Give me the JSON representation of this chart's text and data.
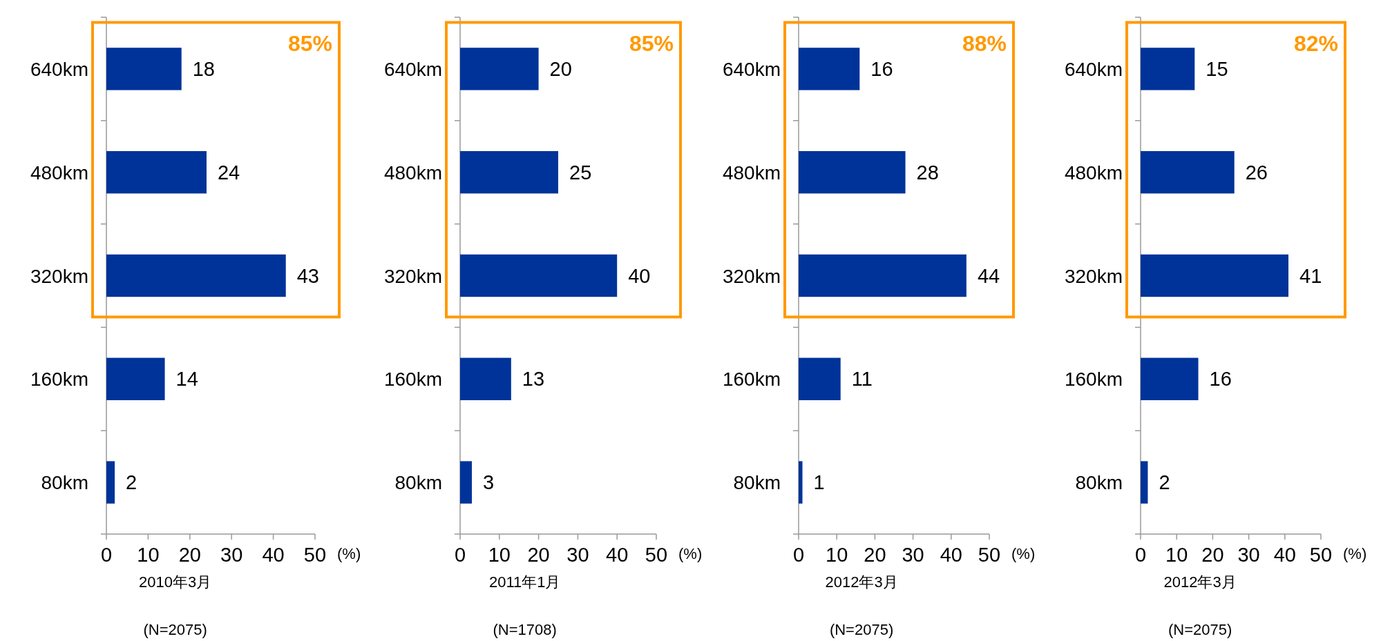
{
  "chart_data": [
    {
      "type": "bar",
      "orientation": "horizontal",
      "title": "2010年3月",
      "subtitle": "(N=2075)",
      "xlabel": "(%)",
      "categories": [
        "640km",
        "480km",
        "320km",
        "160km",
        "80km"
      ],
      "values": [
        18,
        24,
        43,
        14,
        2
      ],
      "color": "#003399",
      "xlim": [
        0,
        50
      ],
      "xticks": [
        0,
        10,
        20,
        30,
        40,
        50
      ],
      "data_labels": true,
      "annotations": [
        "85%"
      ]
    },
    {
      "type": "bar",
      "orientation": "horizontal",
      "title": "2011年1月",
      "subtitle": "(N=1708)",
      "xlabel": "(%)",
      "categories": [
        "640km",
        "480km",
        "320km",
        "160km",
        "80km"
      ],
      "values": [
        20,
        25,
        40,
        13,
        3
      ],
      "color": "#003399",
      "xlim": [
        0,
        50
      ],
      "xticks": [
        0,
        10,
        20,
        30,
        40,
        50
      ],
      "data_labels": true,
      "annotations": [
        "85%"
      ]
    },
    {
      "type": "bar",
      "orientation": "horizontal",
      "title": "2012年3月",
      "subtitle": "(N=2075)",
      "xlabel": "(%)",
      "categories": [
        "640km",
        "480km",
        "320km",
        "160km",
        "80km"
      ],
      "values": [
        16,
        28,
        44,
        11,
        1
      ],
      "color": "#003399",
      "xlim": [
        0,
        50
      ],
      "xticks": [
        0,
        10,
        20,
        30,
        40,
        50
      ],
      "data_labels": true,
      "annotations": [
        "88%"
      ]
    },
    {
      "type": "bar",
      "orientation": "horizontal",
      "title": "2012年3月",
      "subtitle": "(N=2075)",
      "xlabel": "(%)",
      "categories": [
        "640km",
        "480km",
        "320km",
        "160km",
        "80km"
      ],
      "values": [
        15,
        26,
        41,
        16,
        2
      ],
      "color": "#003399",
      "xlim": [
        0,
        50
      ],
      "xticks": [
        0,
        10,
        20,
        30,
        40,
        50
      ],
      "data_labels": true,
      "annotations": [
        "82%"
      ]
    }
  ]
}
